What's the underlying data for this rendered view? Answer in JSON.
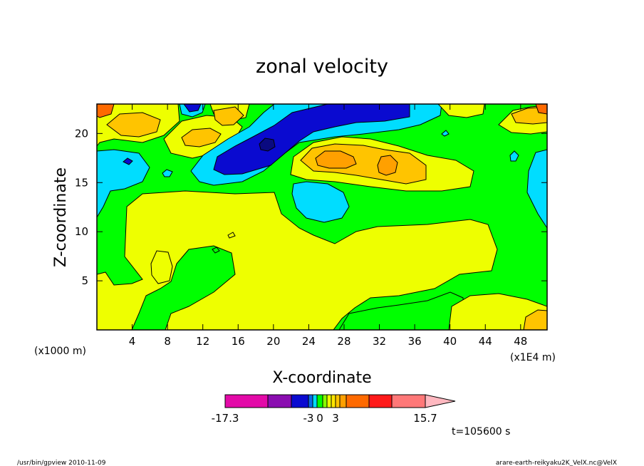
{
  "chart_data": {
    "type": "heatmap",
    "title": "zonal velocity",
    "xlabel": "X-coordinate",
    "ylabel": "Z-coordinate",
    "x_unit_left": "(x1000 m)",
    "x_unit_right": "(x1E4 m)",
    "xlim": [
      0,
      51
    ],
    "ylim": [
      0,
      23
    ],
    "x_ticks": [
      4,
      8,
      12,
      16,
      20,
      24,
      28,
      32,
      36,
      40,
      44,
      48
    ],
    "y_ticks": [
      5,
      10,
      15,
      20
    ],
    "colorbar": {
      "colors": [
        "#e30aa8",
        "#8a0db0",
        "#0a0ad0",
        "#0a6ae8",
        "#00ddff",
        "#00ff00",
        "#88ff00",
        "#eeff00",
        "#ffe600",
        "#ffc400",
        "#ffa000",
        "#ff6a00",
        "#ff1a1a",
        "#ff7878",
        "#ffb8c0"
      ],
      "widths": [
        60,
        33,
        24,
        6,
        6,
        8,
        6,
        6,
        6,
        6,
        9,
        32,
        32,
        47,
        42
      ],
      "labels": [
        "-17.3",
        "-3",
        "0",
        "3",
        "15.7"
      ]
    },
    "time_label": "t=105600 s",
    "footer_left": "/usr/bin/gpview   2010-11-09",
    "footer_right": "arare-earth-reikyaku2K_VelX.nc@VelX"
  }
}
